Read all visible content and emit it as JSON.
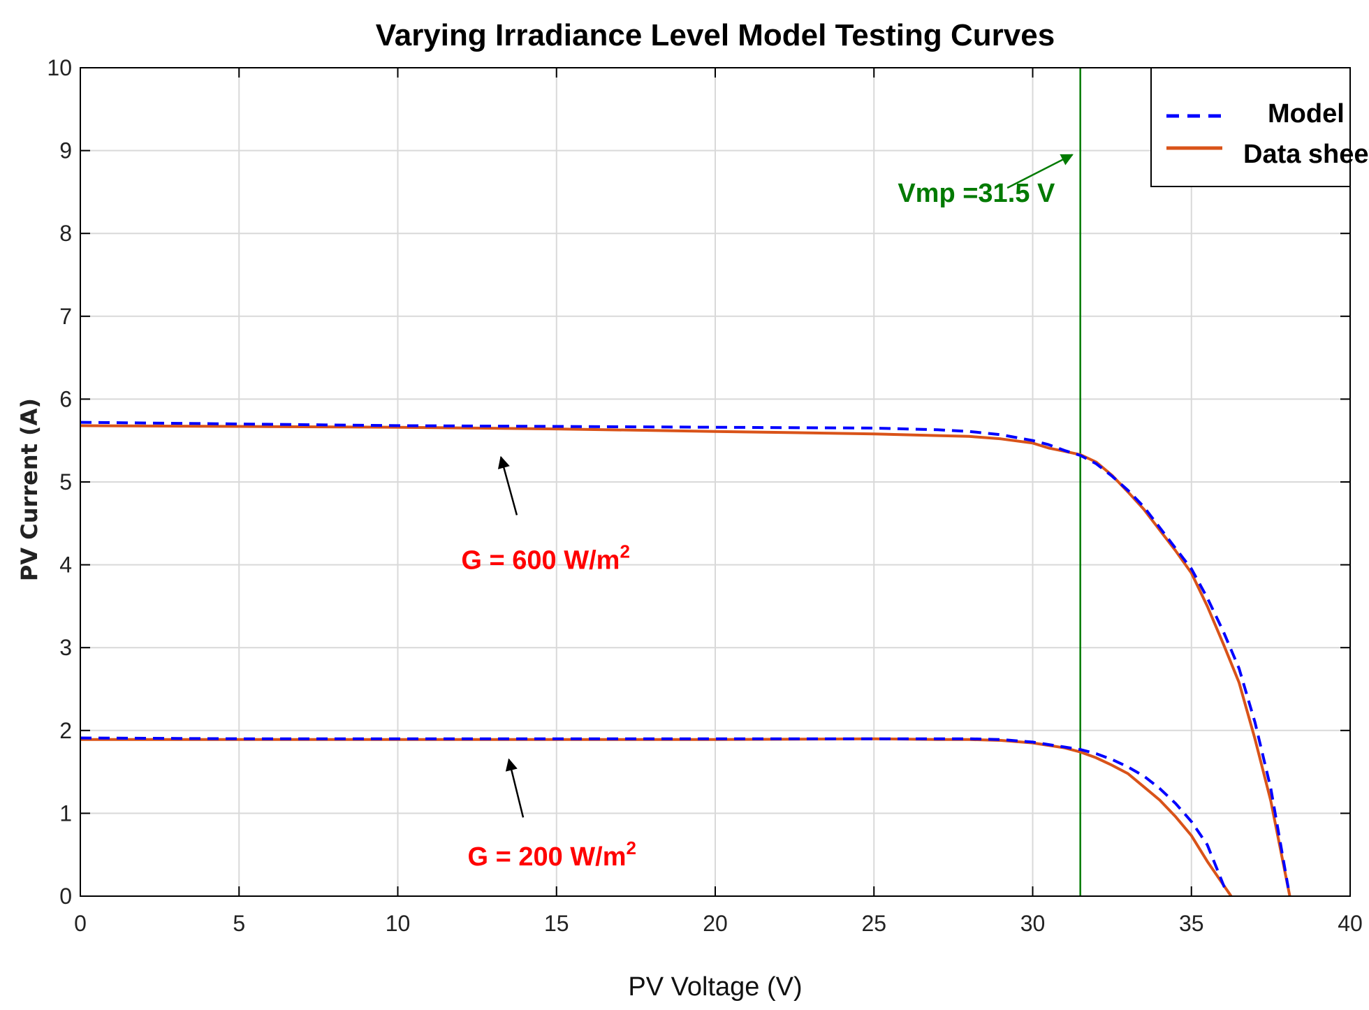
{
  "chart_data": {
    "type": "line",
    "title": "Varying Irradiance Level Model Testing Curves",
    "xlabel": "PV Voltage (V)",
    "ylabel": "PV Current (A)",
    "xlim": [
      0,
      40
    ],
    "ylim": [
      0,
      10
    ],
    "xticks": [
      0,
      5,
      10,
      15,
      20,
      25,
      30,
      35,
      40
    ],
    "yticks": [
      0,
      1,
      2,
      3,
      4,
      5,
      6,
      7,
      8,
      9,
      10
    ],
    "grid": true,
    "legend_position": "top-right",
    "legend": [
      {
        "name": "Model",
        "color": "#0000ff",
        "style": "dashed"
      },
      {
        "name": "Data sheet",
        "color": "#d95319",
        "style": "solid"
      }
    ],
    "series": [
      {
        "name": "Model",
        "group": "G = 600",
        "color": "#0000ff",
        "style": "dashed",
        "x": [
          0,
          5,
          10,
          15,
          20,
          25,
          27,
          28,
          29,
          30,
          30.5,
          31,
          31.5,
          32,
          32.5,
          33,
          33.5,
          34,
          34.5,
          35,
          35.5,
          36,
          36.5,
          37,
          37.5,
          38.05
        ],
        "y": [
          5.72,
          5.7,
          5.68,
          5.67,
          5.66,
          5.65,
          5.63,
          5.61,
          5.57,
          5.5,
          5.45,
          5.38,
          5.32,
          5.22,
          5.07,
          4.9,
          4.7,
          4.45,
          4.2,
          3.95,
          3.6,
          3.2,
          2.75,
          2.1,
          1.3,
          0.1
        ]
      },
      {
        "name": "Data sheet",
        "group": "G = 600",
        "color": "#d95319",
        "style": "solid",
        "x": [
          0,
          5,
          10,
          15,
          20,
          25,
          27,
          28,
          29,
          30,
          30.5,
          31,
          31.5,
          32,
          32.5,
          33,
          33.5,
          34,
          34.5,
          35,
          35.5,
          36,
          36.5,
          37,
          37.5,
          38.1
        ],
        "y": [
          5.68,
          5.67,
          5.66,
          5.64,
          5.61,
          5.58,
          5.56,
          5.55,
          5.52,
          5.47,
          5.41,
          5.37,
          5.33,
          5.24,
          5.08,
          4.88,
          4.67,
          4.42,
          4.17,
          3.9,
          3.5,
          3.05,
          2.58,
          1.9,
          1.15,
          0.0
        ]
      },
      {
        "name": "Model",
        "group": "G = 200",
        "color": "#0000ff",
        "style": "dashed",
        "x": [
          0,
          5,
          10,
          15,
          20,
          25,
          28,
          29,
          30,
          30.5,
          31,
          31.5,
          32,
          32.5,
          33,
          33.5,
          34,
          34.5,
          35,
          35.5,
          36.1
        ],
        "y": [
          1.91,
          1.9,
          1.9,
          1.9,
          1.9,
          1.9,
          1.9,
          1.89,
          1.86,
          1.83,
          1.8,
          1.77,
          1.72,
          1.65,
          1.56,
          1.45,
          1.3,
          1.12,
          0.9,
          0.62,
          0.05
        ]
      },
      {
        "name": "Data sheet",
        "group": "G = 200",
        "color": "#d95319",
        "style": "solid",
        "x": [
          0,
          5,
          10,
          15,
          20,
          25,
          27,
          28,
          29,
          30,
          30.5,
          31,
          31.5,
          32,
          32.5,
          33,
          33.5,
          34,
          34.5,
          35,
          35.5,
          36.25
        ],
        "y": [
          1.89,
          1.89,
          1.89,
          1.89,
          1.89,
          1.9,
          1.89,
          1.89,
          1.88,
          1.85,
          1.82,
          1.79,
          1.74,
          1.67,
          1.58,
          1.48,
          1.32,
          1.16,
          0.96,
          0.73,
          0.42,
          0.0
        ]
      }
    ],
    "vertical_line": {
      "x": 31.5,
      "color": "#007a00",
      "label": "Vmp =31.5 V"
    },
    "annotations": [
      {
        "text_main": "G = 600 W/m",
        "text_sup": "2",
        "color": "#ff0000",
        "text_at": [
          12.0,
          3.95
        ],
        "arrow_from": [
          13.75,
          4.6
        ],
        "arrow_to": [
          13.25,
          5.3
        ]
      },
      {
        "text_main": "G = 200 W/m",
        "text_sup": "2",
        "color": "#ff0000",
        "text_at": [
          12.2,
          0.37
        ],
        "arrow_from": [
          13.95,
          0.95
        ],
        "arrow_to": [
          13.5,
          1.65
        ]
      },
      {
        "text_main": "Vmp =31.5 V",
        "color": "#007a00",
        "text_at": [
          25.75,
          8.38
        ],
        "arrow_from": [
          29.2,
          8.55
        ],
        "arrow_to": [
          31.25,
          8.95
        ]
      }
    ]
  }
}
